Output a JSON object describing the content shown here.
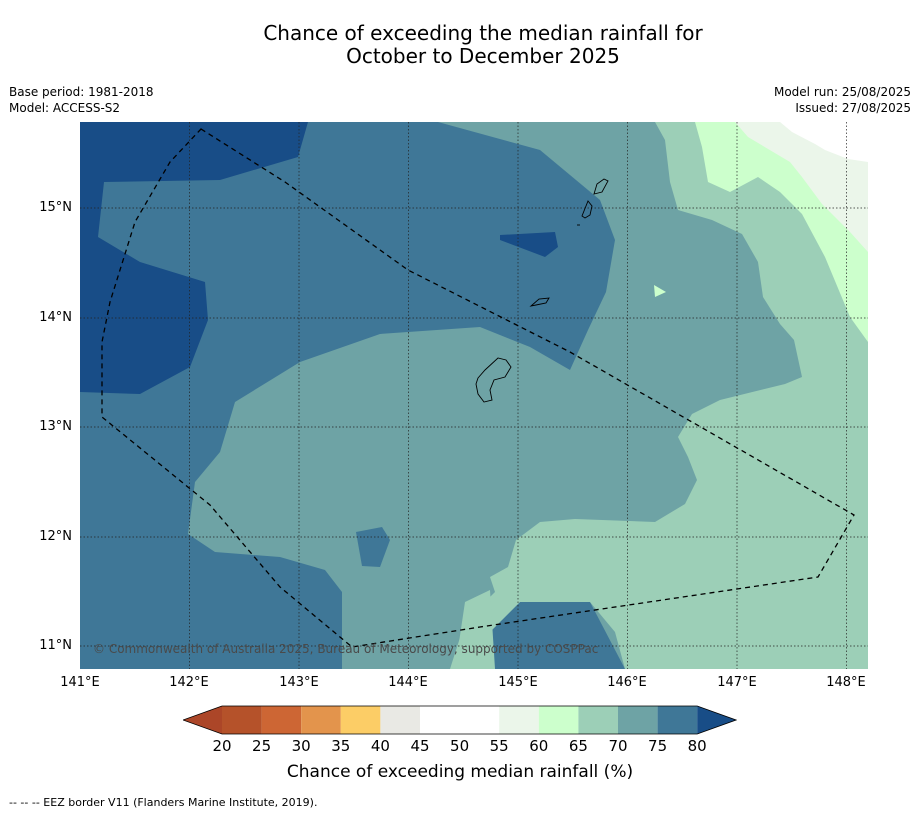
{
  "title": {
    "line1": "Chance of exceeding the median rainfall for",
    "line2": "October to December 2025"
  },
  "info": {
    "base_period": "Base period: 1981-2018",
    "model": "Model: ACCESS-S2",
    "model_run": "Model run: 25/08/2025",
    "issued": "Issued: 27/08/2025"
  },
  "map": {
    "lat_labels": [
      "15°N",
      "14°N",
      "13°N",
      "12°N",
      "11°N"
    ],
    "lon_labels": [
      "141°E",
      "142°E",
      "143°E",
      "144°E",
      "145°E",
      "146°E",
      "147°E",
      "148°E"
    ],
    "copyright": "© Commonwealth of Australia 2025, Bureau of Meteorology, supported by COSPPac"
  },
  "colorbar": {
    "ticks": [
      "20",
      "25",
      "30",
      "35",
      "40",
      "45",
      "50",
      "55",
      "60",
      "65",
      "70",
      "75",
      "80"
    ],
    "label": "Chance of exceeding median rainfall (%)",
    "colors": [
      "#ac4628",
      "#b5522a",
      "#cd6634",
      "#e3944c",
      "#fccd66",
      "#e9e9e4",
      "#ffffff",
      "#ffffff",
      "#ebf6ea",
      "#ccffcc",
      "#9ccfb7",
      "#6ea3a5",
      "#3f7797",
      "#184d87"
    ]
  },
  "legend": {
    "eez": "--  --  -- EEZ border V11 (Flanders Marine Institute, 2019)."
  }
}
